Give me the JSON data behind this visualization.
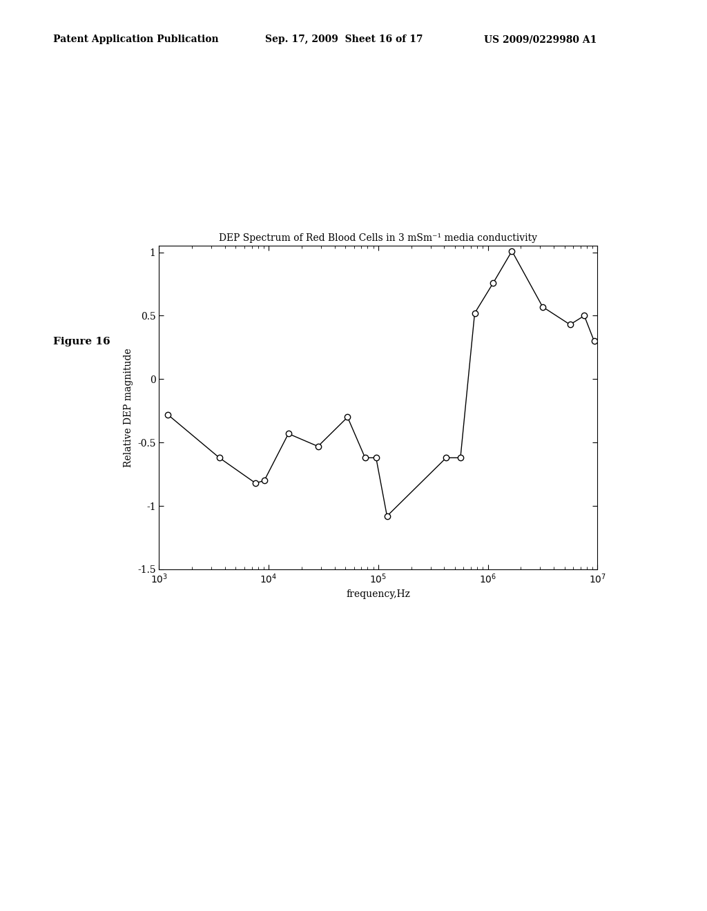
{
  "title": "DEP Spectrum of Red Blood Cells in 3 mSm⁻¹ media conductivity",
  "xlabel": "frequency,Hz",
  "ylabel": "Relative DEP magnitude",
  "header_left": "Patent Application Publication",
  "header_mid": "Sep. 17, 2009  Sheet 16 of 17",
  "header_right": "US 2009/0229980 A1",
  "figure_label": "Figure 16",
  "xlim_log": [
    3,
    7
  ],
  "ylim": [
    -1.5,
    1.05
  ],
  "yticks": [
    -1.5,
    -1.0,
    -0.5,
    0.0,
    0.5,
    1.0
  ],
  "ytick_labels": [
    "-1.5",
    "-1",
    "-0.5",
    "0",
    "0.5",
    "1"
  ],
  "data_x_log": [
    3.08,
    3.55,
    3.88,
    3.96,
    4.18,
    4.45,
    4.72,
    4.88,
    4.98,
    5.08,
    5.62,
    5.75,
    5.88,
    6.05,
    6.22,
    6.5,
    6.75,
    6.88,
    6.97
  ],
  "data_y": [
    -0.28,
    -0.62,
    -0.82,
    -0.8,
    -0.43,
    -0.53,
    -0.3,
    -0.62,
    -0.62,
    -1.08,
    -0.62,
    -0.62,
    0.52,
    0.76,
    1.01,
    0.57,
    0.43,
    0.5,
    0.3
  ],
  "line_color": "#000000",
  "marker": "o",
  "marker_facecolor": "white",
  "marker_edgecolor": "#000000",
  "marker_size": 6,
  "linewidth": 1.0,
  "bg_color": "#ffffff",
  "title_fontsize": 10,
  "label_fontsize": 10,
  "tick_fontsize": 10,
  "header_fontsize": 10,
  "figure_label_fontsize": 11
}
